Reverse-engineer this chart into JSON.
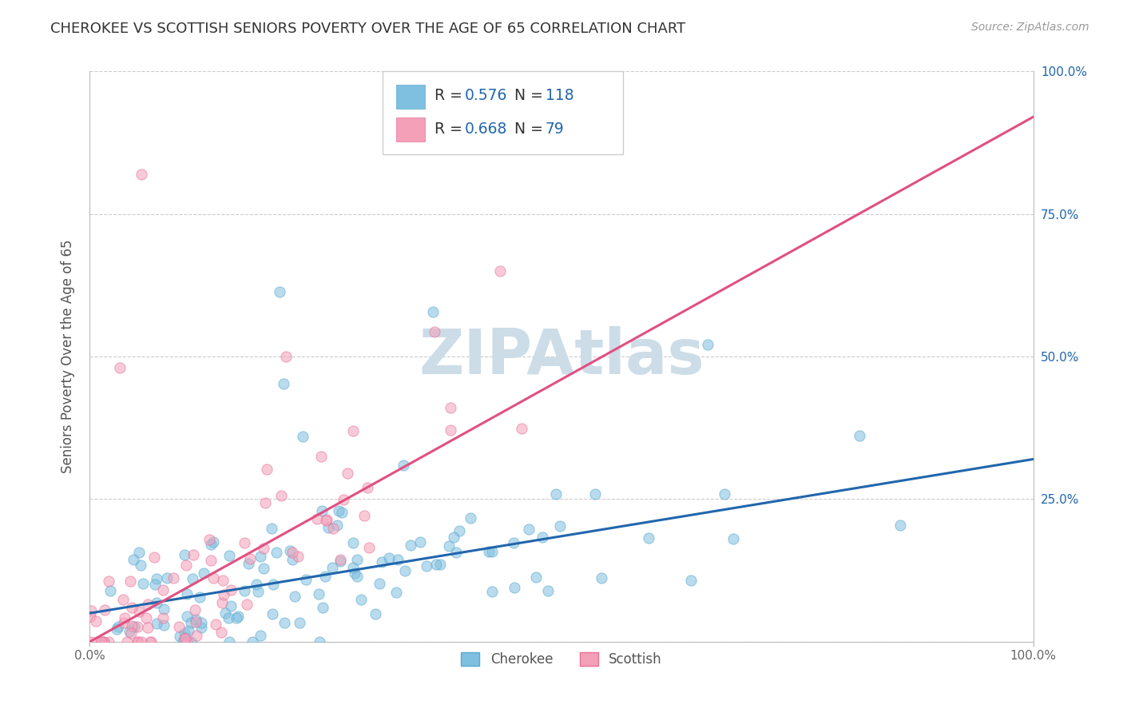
{
  "title": "CHEROKEE VS SCOTTISH SENIORS POVERTY OVER THE AGE OF 65 CORRELATION CHART",
  "source": "Source: ZipAtlas.com",
  "ylabel": "Seniors Poverty Over the Age of 65",
  "xlim": [
    0.0,
    1.0
  ],
  "ylim": [
    0.0,
    1.0
  ],
  "xticks": [
    0.0,
    1.0
  ],
  "yticks": [
    0.25,
    0.5,
    0.75,
    1.0
  ],
  "xticklabels": [
    "0.0%",
    "100.0%"
  ],
  "yticklabels_right": [
    "25.0%",
    "50.0%",
    "75.0%",
    "100.0%"
  ],
  "cherokee_color": "#7fbfdf",
  "scottish_color": "#f4a0b8",
  "cherokee_edge_color": "#5aaad0",
  "scottish_edge_color": "#e87098",
  "cherokee_line_color": "#2166ac",
  "scottish_line_color": "#e05080",
  "cherokee_R": 0.576,
  "cherokee_N": 118,
  "scottish_R": 0.668,
  "scottish_N": 79,
  "watermark": "ZIPAtlas",
  "watermark_color": "#ccdde8",
  "value_color": "#2166ac",
  "background_color": "#ffffff",
  "grid_color": "#cccccc",
  "title_color": "#333333",
  "cherokee_seed": 42,
  "scottish_seed": 123,
  "cherokee_line_intercept": 0.05,
  "cherokee_line_slope": 0.27,
  "scottish_line_intercept": 0.0,
  "scottish_line_slope": 0.92
}
